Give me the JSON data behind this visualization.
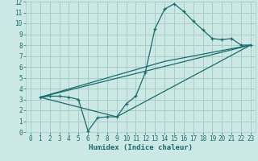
{
  "xlabel": "Humidex (Indice chaleur)",
  "bg_color": "#cce8e5",
  "grid_color": "#a8ccc8",
  "line_color": "#1a6b6b",
  "xlim": [
    -0.5,
    23.5
  ],
  "ylim": [
    0,
    12
  ],
  "xticks": [
    0,
    1,
    2,
    3,
    4,
    5,
    6,
    7,
    8,
    9,
    10,
    11,
    12,
    13,
    14,
    15,
    16,
    17,
    18,
    19,
    20,
    21,
    22,
    23
  ],
  "yticks": [
    0,
    1,
    2,
    3,
    4,
    5,
    6,
    7,
    8,
    9,
    10,
    11,
    12
  ],
  "series1_x": [
    1,
    2,
    3,
    4,
    5,
    6,
    7,
    8,
    9,
    10,
    11,
    12,
    13,
    14,
    15,
    16,
    17,
    18,
    19,
    20,
    21,
    22,
    23
  ],
  "series1_y": [
    3.2,
    3.3,
    3.3,
    3.2,
    3.0,
    0.1,
    1.3,
    1.4,
    1.4,
    2.6,
    3.3,
    5.5,
    9.5,
    11.3,
    11.8,
    11.1,
    10.2,
    9.4,
    8.6,
    8.5,
    8.6,
    8.0,
    8.0
  ],
  "series2_x": [
    1,
    23
  ],
  "series2_y": [
    3.2,
    8.0
  ],
  "series3_x": [
    1,
    9,
    23
  ],
  "series3_y": [
    3.2,
    1.4,
    8.0
  ],
  "series4_x": [
    1,
    14,
    23
  ],
  "series4_y": [
    3.2,
    6.5,
    8.0
  ],
  "tick_fontsize": 5.5,
  "xlabel_fontsize": 6.5
}
